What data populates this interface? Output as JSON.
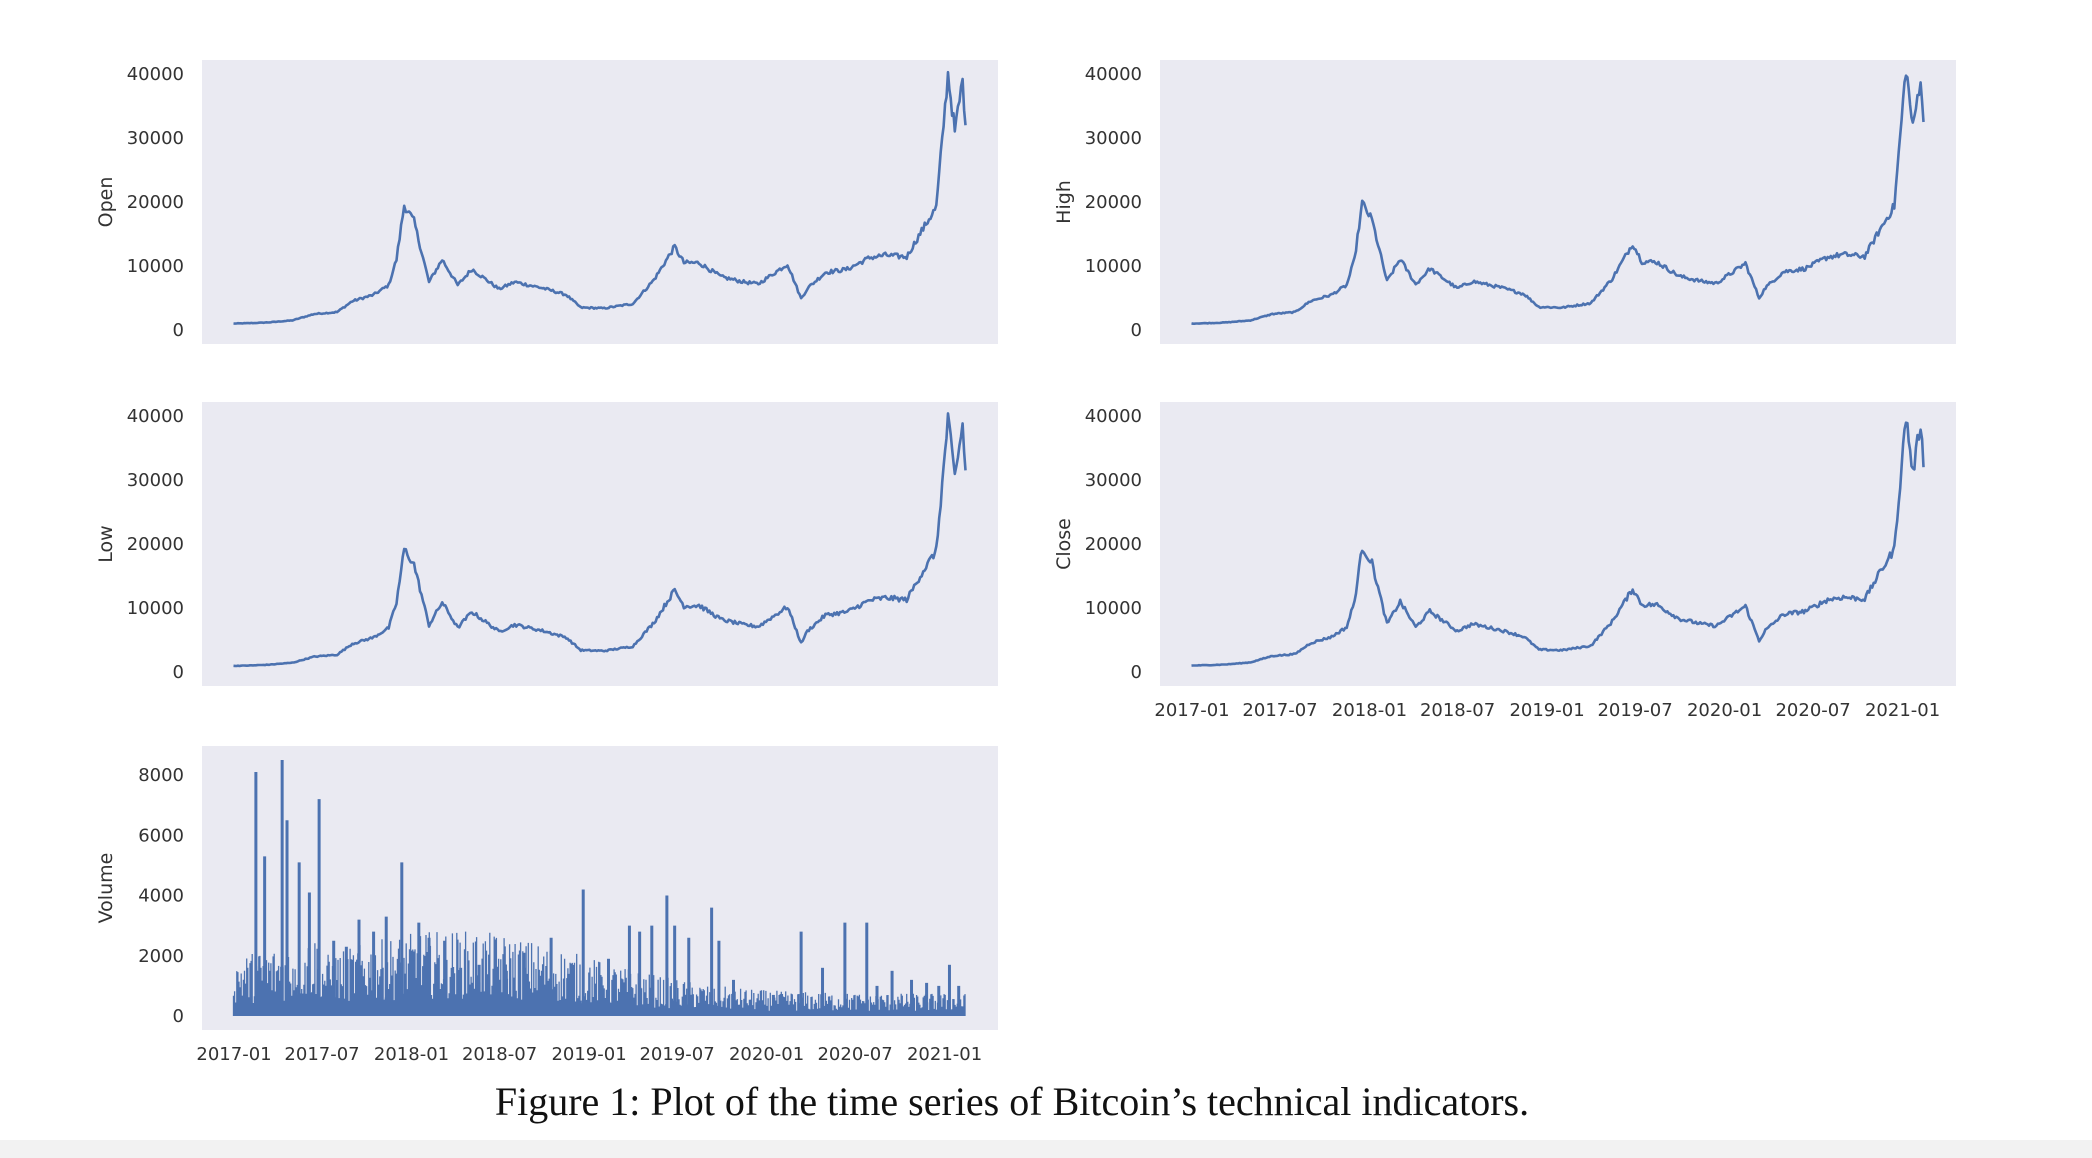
{
  "caption": "Figure 1: Plot of the time series of Bitcoin’s technical indicators.",
  "colors": {
    "line": "#4c72b0",
    "panel_bg": "#eaeaf2",
    "tick_text": "#333333"
  },
  "chart_data": [
    {
      "type": "line",
      "ylabel": "Open",
      "xlim": [
        "2017-01-01",
        "2021-02-14"
      ],
      "ylim": [
        0,
        40000
      ],
      "yticks": [
        "0",
        "10000",
        "20000",
        "30000",
        "40000"
      ],
      "xticks": [],
      "grid": false,
      "series": [
        {
          "x": [
            "2016-12-31",
            "2017-02-15",
            "2017-03-15",
            "2017-05-01",
            "2017-06-15",
            "2017-08-01",
            "2017-09-01",
            "2017-10-15",
            "2017-11-15",
            "2017-12-01",
            "2017-12-17",
            "2018-01-06",
            "2018-02-06",
            "2018-03-05",
            "2018-04-06",
            "2018-05-05",
            "2018-06-30",
            "2018-08-01",
            "2018-09-30",
            "2018-11-15",
            "2018-12-15",
            "2019-02-01",
            "2019-04-01",
            "2019-05-15",
            "2019-06-26",
            "2019-07-15",
            "2019-08-15",
            "2019-09-30",
            "2019-11-15",
            "2019-12-15",
            "2020-02-13",
            "2020-03-12",
            "2020-03-25",
            "2020-05-01",
            "2020-06-15",
            "2020-07-31",
            "2020-09-01",
            "2020-10-15",
            "2020-11-15",
            "2020-12-15",
            "2021-01-08",
            "2021-01-22",
            "2021-02-07",
            "2021-02-13"
          ],
          "values": [
            1000,
            1100,
            1200,
            1500,
            2500,
            2800,
            4500,
            5500,
            7000,
            11000,
            19500,
            17000,
            7500,
            11000,
            7000,
            9500,
            6400,
            7500,
            6500,
            5500,
            3500,
            3400,
            4100,
            7900,
            13000,
            10500,
            10500,
            8300,
            7500,
            7200,
            10300,
            4900,
            6500,
            9000,
            9500,
            11300,
            11700,
            11400,
            15500,
            19200,
            40000,
            31000,
            39000,
            32000
          ]
        }
      ]
    },
    {
      "type": "line",
      "ylabel": "High",
      "xlim": [
        "2017-01-01",
        "2021-02-14"
      ],
      "ylim": [
        0,
        40000
      ],
      "yticks": [
        "0",
        "10000",
        "20000",
        "30000",
        "40000"
      ],
      "xticks": [],
      "grid": false,
      "series": [
        {
          "x": [
            "2016-12-31",
            "2017-02-15",
            "2017-03-15",
            "2017-05-01",
            "2017-06-15",
            "2017-08-01",
            "2017-09-01",
            "2017-10-15",
            "2017-11-15",
            "2017-12-01",
            "2017-12-17",
            "2018-01-06",
            "2018-02-06",
            "2018-03-05",
            "2018-04-06",
            "2018-05-05",
            "2018-06-30",
            "2018-08-01",
            "2018-09-30",
            "2018-11-15",
            "2018-12-15",
            "2019-02-01",
            "2019-04-01",
            "2019-05-15",
            "2019-06-26",
            "2019-07-15",
            "2019-08-15",
            "2019-09-30",
            "2019-11-15",
            "2019-12-15",
            "2020-02-13",
            "2020-03-12",
            "2020-03-25",
            "2020-05-01",
            "2020-06-15",
            "2020-07-31",
            "2020-09-01",
            "2020-10-15",
            "2020-11-15",
            "2020-12-15",
            "2021-01-08",
            "2021-01-22",
            "2021-02-07",
            "2021-02-13"
          ],
          "values": [
            1000,
            1100,
            1200,
            1500,
            2500,
            2800,
            4500,
            5500,
            7000,
            11000,
            19800,
            17200,
            7600,
            11100,
            7100,
            9600,
            6500,
            7600,
            6600,
            5600,
            3600,
            3500,
            4200,
            8000,
            13500,
            10700,
            10600,
            8400,
            7600,
            7300,
            10400,
            5000,
            6600,
            9100,
            9600,
            11400,
            11800,
            11500,
            15600,
            19400,
            41000,
            31500,
            39500,
            32500
          ]
        }
      ]
    },
    {
      "type": "line",
      "ylabel": "Low",
      "xlim": [
        "2017-01-01",
        "2021-02-14"
      ],
      "ylim": [
        0,
        40000
      ],
      "yticks": [
        "0",
        "10000",
        "20000",
        "30000",
        "40000"
      ],
      "xticks": [],
      "grid": false,
      "series": [
        {
          "x": [
            "2016-12-31",
            "2017-02-15",
            "2017-03-15",
            "2017-05-01",
            "2017-06-15",
            "2017-08-01",
            "2017-09-01",
            "2017-10-15",
            "2017-11-15",
            "2017-12-01",
            "2017-12-17",
            "2018-01-06",
            "2018-02-06",
            "2018-03-05",
            "2018-04-06",
            "2018-05-05",
            "2018-06-30",
            "2018-08-01",
            "2018-09-30",
            "2018-11-15",
            "2018-12-15",
            "2019-02-01",
            "2019-04-01",
            "2019-05-15",
            "2019-06-26",
            "2019-07-15",
            "2019-08-15",
            "2019-09-30",
            "2019-11-15",
            "2019-12-15",
            "2020-02-13",
            "2020-03-12",
            "2020-03-25",
            "2020-05-01",
            "2020-06-15",
            "2020-07-31",
            "2020-09-01",
            "2020-10-15",
            "2020-11-15",
            "2020-12-15",
            "2021-01-08",
            "2021-01-22",
            "2021-02-07",
            "2021-02-13"
          ],
          "values": [
            950,
            1050,
            1150,
            1450,
            2400,
            2700,
            4400,
            5400,
            6900,
            10800,
            19200,
            16800,
            7300,
            10900,
            6900,
            9400,
            6300,
            7400,
            6400,
            5400,
            3400,
            3300,
            4000,
            7800,
            12800,
            10300,
            10400,
            8200,
            7400,
            7100,
            10200,
            4500,
            6400,
            8900,
            9400,
            11200,
            11600,
            11300,
            15400,
            19000,
            39500,
            30500,
            38500,
            31500
          ]
        }
      ]
    },
    {
      "type": "line",
      "ylabel": "Close",
      "xlim": [
        "2017-01-01",
        "2021-02-14"
      ],
      "ylim": [
        0,
        40000
      ],
      "yticks": [
        "0",
        "10000",
        "20000",
        "30000",
        "40000"
      ],
      "xticks": [
        "2017-01",
        "2017-07",
        "2018-01",
        "2018-07",
        "2019-01",
        "2019-07",
        "2020-01",
        "2020-07",
        "2021-01"
      ],
      "grid": false,
      "series": [
        {
          "x": [
            "2016-12-31",
            "2017-02-15",
            "2017-03-15",
            "2017-05-01",
            "2017-06-15",
            "2017-08-01",
            "2017-09-01",
            "2017-10-15",
            "2017-11-15",
            "2017-12-01",
            "2017-12-17",
            "2018-01-06",
            "2018-02-06",
            "2018-03-05",
            "2018-04-06",
            "2018-05-05",
            "2018-06-30",
            "2018-08-01",
            "2018-09-30",
            "2018-11-15",
            "2018-12-15",
            "2019-02-01",
            "2019-04-01",
            "2019-05-15",
            "2019-06-26",
            "2019-07-15",
            "2019-08-15",
            "2019-09-30",
            "2019-11-15",
            "2019-12-15",
            "2020-02-13",
            "2020-03-12",
            "2020-03-25",
            "2020-05-01",
            "2020-06-15",
            "2020-07-31",
            "2020-09-01",
            "2020-10-15",
            "2020-11-15",
            "2020-12-15",
            "2021-01-08",
            "2021-01-22",
            "2021-02-07",
            "2021-02-13"
          ],
          "values": [
            1000,
            1100,
            1200,
            1500,
            2500,
            2800,
            4500,
            5500,
            7000,
            11000,
            19500,
            17000,
            7500,
            11000,
            7000,
            9500,
            6400,
            7500,
            6500,
            5500,
            3500,
            3400,
            4100,
            7900,
            13000,
            10500,
            10500,
            8300,
            7500,
            7200,
            10300,
            4900,
            6500,
            9000,
            9500,
            11300,
            11700,
            11400,
            15500,
            19200,
            40000,
            31000,
            39000,
            32000
          ]
        }
      ]
    },
    {
      "type": "line",
      "ylabel": "Volume",
      "xlim": [
        "2017-01-01",
        "2021-02-14"
      ],
      "ylim": [
        0,
        8500
      ],
      "yticks": [
        "0",
        "2000",
        "4000",
        "6000",
        "8000"
      ],
      "xticks": [
        "2017-01",
        "2017-07",
        "2018-01",
        "2018-07",
        "2019-01",
        "2019-07",
        "2020-01",
        "2020-07",
        "2021-01"
      ],
      "grid": false,
      "series": [
        {
          "x": [
            "2017-02-15",
            "2017-03-05",
            "2017-04-10",
            "2017-04-20",
            "2017-05-15",
            "2017-06-05",
            "2017-06-25",
            "2017-07-25",
            "2017-08-20",
            "2017-09-15",
            "2017-10-15",
            "2017-11-10",
            "2017-12-12",
            "2018-01-16",
            "2018-02-06",
            "2018-03-10",
            "2018-04-12",
            "2018-05-20",
            "2018-07-15",
            "2018-08-20",
            "2018-10-15",
            "2018-11-20",
            "2018-12-20",
            "2019-02-10",
            "2019-03-25",
            "2019-04-15",
            "2019-05-10",
            "2019-06-10",
            "2019-06-26",
            "2019-07-25",
            "2019-09-10",
            "2019-09-25",
            "2019-10-25",
            "2020-01-15",
            "2020-03-12",
            "2020-04-25",
            "2020-06-10",
            "2020-07-25",
            "2020-08-15",
            "2020-09-15",
            "2020-10-25",
            "2020-11-25",
            "2020-12-20",
            "2021-01-11",
            "2021-01-30"
          ],
          "values": [
            8100,
            5300,
            8500,
            6500,
            5100,
            4100,
            7200,
            2500,
            2300,
            3200,
            2800,
            3300,
            5100,
            3100,
            2600,
            2500,
            1600,
            1700,
            1500,
            2100,
            2600,
            1400,
            4200,
            1900,
            3000,
            2800,
            3000,
            4000,
            3000,
            2600,
            3600,
            2500,
            1200,
            700,
            2800,
            1600,
            3100,
            3100,
            1000,
            1500,
            1200,
            1100,
            1000,
            1700,
            1000
          ]
        }
      ]
    }
  ]
}
